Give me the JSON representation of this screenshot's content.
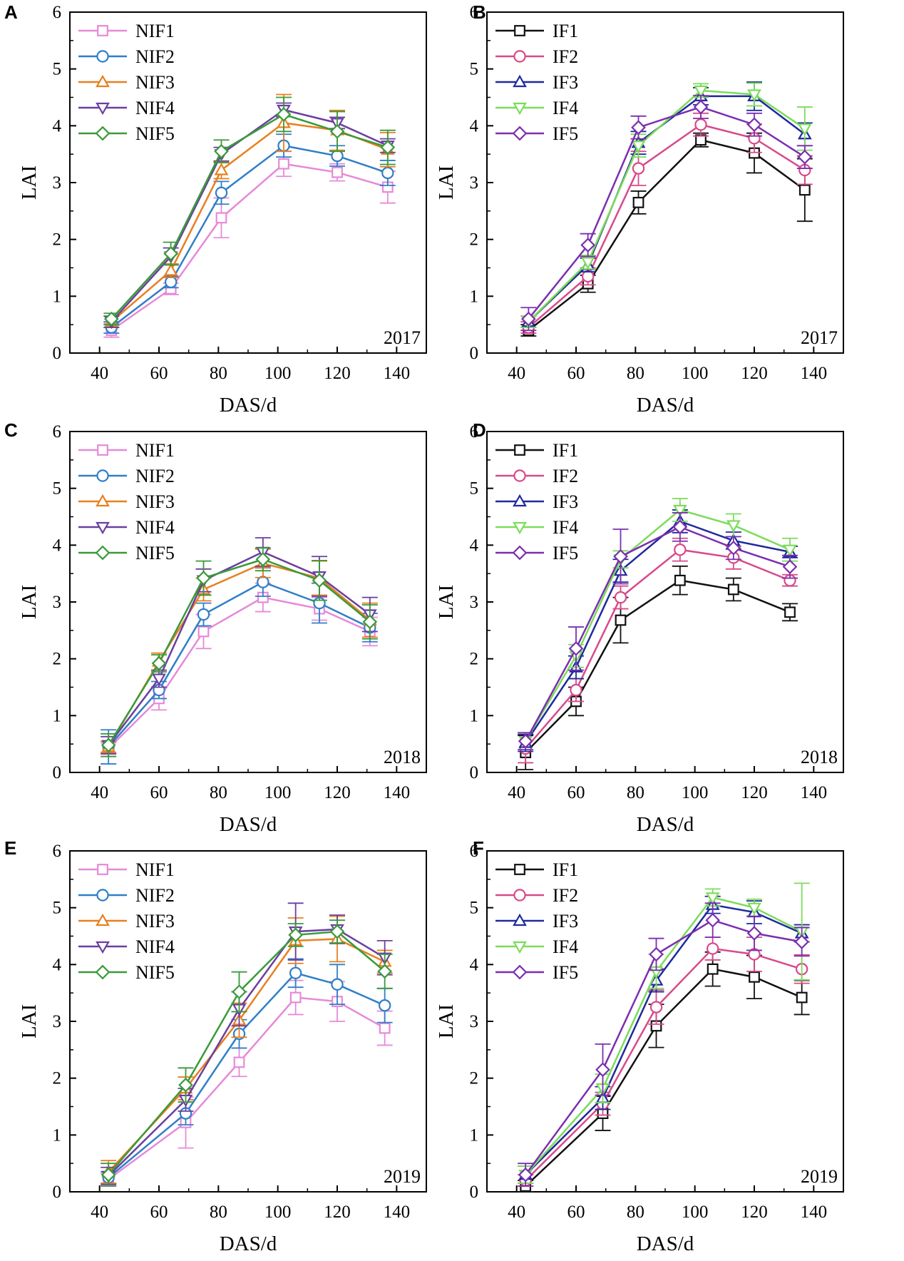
{
  "figure": {
    "panels": [
      "A",
      "B",
      "C",
      "D",
      "E",
      "F"
    ]
  },
  "chart_data": [
    {
      "panel": "A",
      "type": "line",
      "year": "2017",
      "xlabel": "DAS/d",
      "ylabel": "LAI",
      "xlim": [
        30,
        150
      ],
      "ylim": [
        0,
        6
      ],
      "xticks": [
        40,
        60,
        80,
        100,
        120,
        140
      ],
      "yticks": [
        0,
        1,
        2,
        3,
        4,
        5,
        6
      ],
      "x": [
        44,
        64,
        81,
        102,
        120,
        137
      ],
      "series": [
        {
          "name": "NIF1",
          "color": "#e68ad8",
          "marker": "square",
          "values": [
            0.4,
            1.13,
            2.38,
            3.33,
            3.18,
            2.92
          ],
          "err": [
            0.12,
            0.1,
            0.35,
            0.22,
            0.15,
            0.28
          ]
        },
        {
          "name": "NIF2",
          "color": "#2f7fc8",
          "marker": "circle",
          "values": [
            0.45,
            1.25,
            2.82,
            3.65,
            3.47,
            3.17
          ],
          "err": [
            0.1,
            0.1,
            0.2,
            0.2,
            0.18,
            0.22
          ]
        },
        {
          "name": "NIF3",
          "color": "#e8801f",
          "marker": "triangle",
          "values": [
            0.55,
            1.45,
            3.22,
            4.05,
            3.92,
            3.58
          ],
          "err": [
            0.1,
            0.12,
            0.15,
            0.5,
            0.35,
            0.3
          ]
        },
        {
          "name": "NIF4",
          "color": "#6b3fa0",
          "marker": "tridown",
          "values": [
            0.55,
            1.7,
            3.5,
            4.28,
            4.05,
            3.65
          ],
          "err": [
            0.1,
            0.15,
            0.12,
            0.12,
            0.1,
            0.12
          ]
        },
        {
          "name": "NIF5",
          "color": "#3a9a3a",
          "marker": "diamond",
          "values": [
            0.6,
            1.75,
            3.55,
            4.2,
            3.9,
            3.62
          ],
          "err": [
            0.1,
            0.2,
            0.2,
            0.3,
            0.35,
            0.3
          ]
        }
      ]
    },
    {
      "panel": "B",
      "type": "line",
      "year": "2017",
      "xlabel": "DAS/d",
      "ylabel": "LAI",
      "xlim": [
        30,
        150
      ],
      "ylim": [
        0,
        6
      ],
      "xticks": [
        40,
        60,
        80,
        100,
        120,
        140
      ],
      "yticks": [
        0,
        1,
        2,
        3,
        4,
        5,
        6
      ],
      "x": [
        44,
        64,
        81,
        102,
        120,
        137
      ],
      "series": [
        {
          "name": "IF1",
          "color": "#111111",
          "marker": "square",
          "values": [
            0.4,
            1.22,
            2.65,
            3.75,
            3.52,
            2.87
          ],
          "err": [
            0.1,
            0.15,
            0.2,
            0.12,
            0.35,
            0.55
          ]
        },
        {
          "name": "IF2",
          "color": "#d84a8a",
          "marker": "circle",
          "values": [
            0.45,
            1.35,
            3.25,
            4.02,
            3.78,
            3.22
          ],
          "err": [
            0.1,
            0.15,
            0.3,
            0.2,
            0.25,
            0.25
          ]
        },
        {
          "name": "IF3",
          "color": "#1f2a9c",
          "marker": "triangle",
          "values": [
            0.55,
            1.55,
            3.7,
            4.52,
            4.52,
            3.85
          ],
          "err": [
            0.1,
            0.12,
            0.2,
            0.15,
            0.25,
            0.2
          ]
        },
        {
          "name": "IF4",
          "color": "#7bdc5a",
          "marker": "tridown",
          "values": [
            0.55,
            1.6,
            3.65,
            4.62,
            4.55,
            3.95
          ],
          "err": [
            0.1,
            0.12,
            0.2,
            0.12,
            0.2,
            0.38
          ]
        },
        {
          "name": "IF5",
          "color": "#7b2fb0",
          "marker": "diamond",
          "values": [
            0.6,
            1.9,
            3.97,
            4.33,
            4.02,
            3.45
          ],
          "err": [
            0.2,
            0.2,
            0.2,
            0.2,
            0.2,
            0.2
          ]
        }
      ]
    },
    {
      "panel": "C",
      "type": "line",
      "year": "2018",
      "xlabel": "DAS/d",
      "ylabel": "LAI",
      "xlim": [
        30,
        150
      ],
      "ylim": [
        0,
        6
      ],
      "xticks": [
        40,
        60,
        80,
        100,
        120,
        140
      ],
      "yticks": [
        0,
        1,
        2,
        3,
        4,
        5,
        6
      ],
      "x": [
        43,
        60,
        75,
        95,
        114,
        131
      ],
      "series": [
        {
          "name": "NIF1",
          "color": "#e68ad8",
          "marker": "square",
          "values": [
            0.42,
            1.3,
            2.48,
            3.08,
            2.88,
            2.48
          ],
          "err": [
            0.1,
            0.2,
            0.3,
            0.25,
            0.2,
            0.25
          ]
        },
        {
          "name": "NIF2",
          "color": "#2f7fc8",
          "marker": "circle",
          "values": [
            0.45,
            1.45,
            2.78,
            3.35,
            2.98,
            2.55
          ],
          "err": [
            0.3,
            0.15,
            0.2,
            0.25,
            0.35,
            0.25
          ]
        },
        {
          "name": "NIF3",
          "color": "#e8801f",
          "marker": "triangle",
          "values": [
            0.45,
            1.95,
            3.22,
            3.68,
            3.42,
            2.68
          ],
          "err": [
            0.1,
            0.15,
            0.2,
            0.25,
            0.3,
            0.3
          ]
        },
        {
          "name": "NIF4",
          "color": "#6b3fa0",
          "marker": "tridown",
          "values": [
            0.48,
            1.65,
            3.38,
            3.88,
            3.45,
            2.78
          ],
          "err": [
            0.15,
            0.15,
            0.2,
            0.25,
            0.35,
            0.3
          ]
        },
        {
          "name": "NIF5",
          "color": "#3a9a3a",
          "marker": "diamond",
          "values": [
            0.48,
            1.92,
            3.42,
            3.75,
            3.38,
            2.65
          ],
          "err": [
            0.2,
            0.15,
            0.3,
            0.2,
            0.35,
            0.3
          ]
        }
      ]
    },
    {
      "panel": "D",
      "type": "line",
      "year": "2018",
      "xlabel": "DAS/d",
      "ylabel": "LAI",
      "xlim": [
        30,
        150
      ],
      "ylim": [
        0,
        6
      ],
      "xticks": [
        40,
        60,
        80,
        100,
        120,
        140
      ],
      "yticks": [
        0,
        1,
        2,
        3,
        4,
        5,
        6
      ],
      "x": [
        43,
        60,
        75,
        95,
        113,
        132
      ],
      "series": [
        {
          "name": "IF1",
          "color": "#111111",
          "marker": "square",
          "values": [
            0.35,
            1.25,
            2.68,
            3.38,
            3.22,
            2.82
          ],
          "err": [
            0.3,
            0.25,
            0.4,
            0.25,
            0.2,
            0.15
          ]
        },
        {
          "name": "IF2",
          "color": "#d84a8a",
          "marker": "circle",
          "values": [
            0.42,
            1.45,
            3.08,
            3.92,
            3.78,
            3.38
          ],
          "err": [
            0.25,
            0.2,
            0.2,
            0.2,
            0.2,
            0.1
          ]
        },
        {
          "name": "IF3",
          "color": "#1f2a9c",
          "marker": "triangle",
          "values": [
            0.52,
            1.85,
            3.55,
            4.42,
            4.08,
            3.88
          ],
          "err": [
            0.15,
            0.2,
            0.2,
            0.2,
            0.15,
            0.1
          ]
        },
        {
          "name": "IF4",
          "color": "#7bdc5a",
          "marker": "tridown",
          "values": [
            0.55,
            2.05,
            3.75,
            4.62,
            4.35,
            3.92
          ],
          "err": [
            0.15,
            0.2,
            0.15,
            0.2,
            0.2,
            0.2
          ]
        },
        {
          "name": "IF5",
          "color": "#7b2fb0",
          "marker": "diamond",
          "values": [
            0.55,
            2.18,
            3.8,
            4.32,
            3.95,
            3.62
          ],
          "err": [
            0.15,
            0.38,
            0.48,
            0.25,
            0.2,
            0.2
          ]
        }
      ]
    },
    {
      "panel": "E",
      "type": "line",
      "year": "2019",
      "xlabel": "DAS/d",
      "ylabel": "LAI",
      "xlim": [
        30,
        150
      ],
      "ylim": [
        0,
        6
      ],
      "xticks": [
        40,
        60,
        80,
        100,
        120,
        140
      ],
      "yticks": [
        0,
        1,
        2,
        3,
        4,
        5,
        6
      ],
      "x": [
        43,
        69,
        87,
        106,
        120,
        136
      ],
      "series": [
        {
          "name": "NIF1",
          "color": "#e68ad8",
          "marker": "square",
          "values": [
            0.22,
            1.22,
            2.28,
            3.42,
            3.35,
            2.88
          ],
          "err": [
            0.1,
            0.45,
            0.25,
            0.3,
            0.35,
            0.3
          ]
        },
        {
          "name": "NIF2",
          "color": "#2f7fc8",
          "marker": "circle",
          "values": [
            0.25,
            1.38,
            2.78,
            3.85,
            3.65,
            3.28
          ],
          "err": [
            0.1,
            0.2,
            0.25,
            0.25,
            0.35,
            0.3
          ]
        },
        {
          "name": "NIF3",
          "color": "#e8801f",
          "marker": "triangle",
          "values": [
            0.35,
            1.82,
            3.02,
            4.42,
            4.45,
            4.05
          ],
          "err": [
            0.2,
            0.2,
            0.3,
            0.4,
            0.4,
            0.2
          ]
        },
        {
          "name": "NIF4",
          "color": "#6b3fa0",
          "marker": "tridown",
          "values": [
            0.28,
            1.62,
            3.22,
            4.58,
            4.62,
            4.12
          ],
          "err": [
            0.15,
            0.2,
            0.3,
            0.5,
            0.25,
            0.3
          ]
        },
        {
          "name": "NIF5",
          "color": "#3a9a3a",
          "marker": "diamond",
          "values": [
            0.3,
            1.88,
            3.52,
            4.52,
            4.58,
            3.88
          ],
          "err": [
            0.2,
            0.3,
            0.35,
            0.2,
            0.2,
            0.3
          ]
        }
      ]
    },
    {
      "panel": "F",
      "type": "line",
      "year": "2019",
      "xlabel": "DAS/d",
      "ylabel": "LAI",
      "xlim": [
        30,
        150
      ],
      "ylim": [
        0,
        6
      ],
      "xticks": [
        40,
        60,
        80,
        100,
        120,
        140
      ],
      "yticks": [
        0,
        1,
        2,
        3,
        4,
        5,
        6
      ],
      "x": [
        43,
        69,
        87,
        106,
        120,
        136
      ],
      "series": [
        {
          "name": "IF1",
          "color": "#111111",
          "marker": "square",
          "values": [
            0.1,
            1.38,
            2.92,
            3.92,
            3.78,
            3.42
          ],
          "err": [
            0.1,
            0.3,
            0.38,
            0.3,
            0.38,
            0.3
          ]
        },
        {
          "name": "IF2",
          "color": "#d84a8a",
          "marker": "circle",
          "values": [
            0.2,
            1.55,
            3.25,
            4.28,
            4.18,
            3.92
          ],
          "err": [
            0.1,
            0.2,
            0.3,
            0.2,
            0.3,
            0.25
          ]
        },
        {
          "name": "IF3",
          "color": "#1f2a9c",
          "marker": "triangle",
          "values": [
            0.3,
            1.65,
            3.72,
            5.05,
            4.92,
            4.55
          ],
          "err": [
            0.15,
            0.2,
            0.2,
            0.15,
            0.2,
            0.15
          ]
        },
        {
          "name": "IF4",
          "color": "#7bdc5a",
          "marker": "tridown",
          "values": [
            0.3,
            1.82,
            3.88,
            5.18,
            5.0,
            4.58
          ],
          "err": [
            0.15,
            0.25,
            0.3,
            0.15,
            0.15,
            0.85
          ]
        },
        {
          "name": "IF5",
          "color": "#7b2fb0",
          "marker": "diamond",
          "values": [
            0.3,
            2.15,
            4.18,
            4.78,
            4.55,
            4.4
          ],
          "err": [
            0.2,
            0.45,
            0.28,
            0.3,
            0.3,
            0.25
          ]
        }
      ]
    }
  ]
}
